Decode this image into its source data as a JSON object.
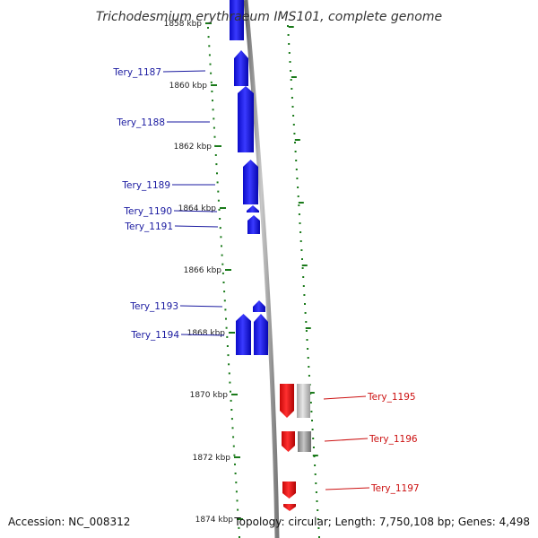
{
  "title": "Trichodesmium erythraeum IMS101, complete genome",
  "footer": {
    "accession": "Accession: NC_008312",
    "summary": "Topology: circular; Length: 7,750,108 bp; Genes: 4,498"
  },
  "colors": {
    "plus_strand": "#1515e6",
    "minus_strand": "#e60f0f",
    "pseudo": "#9a9a9a",
    "backbone": "#9a9a9a",
    "tick": "#1a7a1a",
    "label_plus": "#1a1aa0",
    "label_minus": "#cc1111"
  },
  "scale": {
    "unit": "kbp",
    "ticks": [
      {
        "label": "1858 kbp"
      },
      {
        "label": "1860 kbp"
      },
      {
        "label": "1862 kbp"
      },
      {
        "label": "1864 kbp"
      },
      {
        "label": "1866 kbp"
      },
      {
        "label": "1868 kbp"
      },
      {
        "label": "1870 kbp"
      },
      {
        "label": "1872 kbp"
      },
      {
        "label": "1874 kbp"
      }
    ]
  },
  "genes": [
    {
      "name": "Tery_1187",
      "strand": "+"
    },
    {
      "name": "Tery_1188",
      "strand": "+"
    },
    {
      "name": "Tery_1189",
      "strand": "+"
    },
    {
      "name": "Tery_1190",
      "strand": "+"
    },
    {
      "name": "Tery_1191",
      "strand": "+"
    },
    {
      "name": "Tery_1193",
      "strand": "+"
    },
    {
      "name": "Tery_1194",
      "strand": "+"
    },
    {
      "name": "Tery_1195",
      "strand": "-"
    },
    {
      "name": "Tery_1196",
      "strand": "-"
    },
    {
      "name": "Tery_1197",
      "strand": "-"
    }
  ]
}
